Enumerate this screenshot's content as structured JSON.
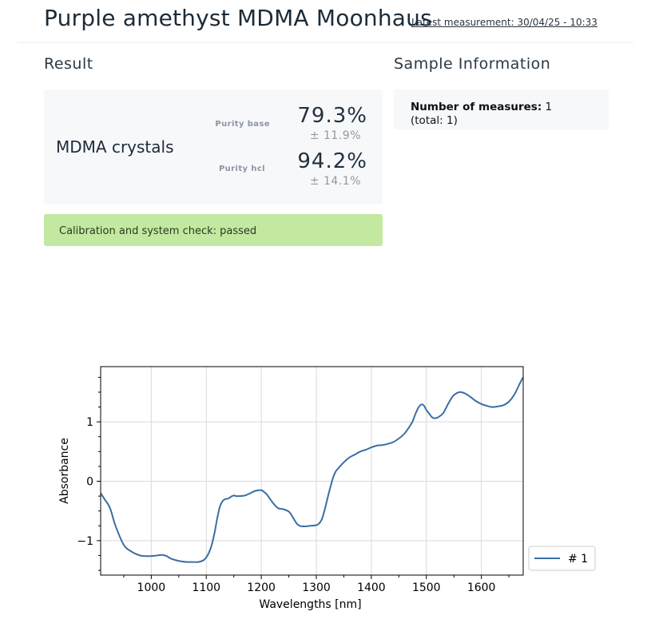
{
  "header": {
    "title": "Purple amethyst MDMA Moonhaus",
    "latest_measurement": "Latest measurement: 30/04/25 - 10:33"
  },
  "result": {
    "section_title": "Result",
    "product": "MDMA crystals",
    "metrics": [
      {
        "label": "Purity base",
        "value": "79.3%",
        "error": "± 11.9%"
      },
      {
        "label": "Purity hcl",
        "value": "94.2%",
        "error": "± 14.1%"
      }
    ],
    "status": "Calibration and system check: passed",
    "status_color": "#c3e8a0"
  },
  "sample": {
    "section_title": "Sample Information",
    "measures_label": "Number of measures:",
    "measures_value": "1",
    "total_text": "(total: 1)"
  },
  "chart_data": {
    "type": "line",
    "xlabel": "Wavelengths [nm]",
    "ylabel": "Absorbance",
    "xlim": [
      908,
      1676
    ],
    "ylim": [
      -1.58,
      1.93
    ],
    "xticks": [
      1000,
      1100,
      1200,
      1300,
      1400,
      1500,
      1600
    ],
    "xtick_labels": [
      "1000",
      "1100",
      "1200",
      "1300",
      "1400",
      "1500",
      "1600"
    ],
    "yticks": [
      -1,
      0,
      1
    ],
    "ytick_labels": [
      "−1",
      "0",
      "1"
    ],
    "grid": true,
    "legend_position": "outside-right",
    "series": [
      {
        "name": "# 1",
        "color": "#3a6ea5",
        "x": [
          908,
          915,
          925,
          935,
          950,
          965,
          980,
          990,
          1000,
          1010,
          1020,
          1028,
          1035,
          1045,
          1055,
          1065,
          1075,
          1085,
          1095,
          1100,
          1105,
          1110,
          1115,
          1120,
          1125,
          1130,
          1135,
          1140,
          1145,
          1150,
          1155,
          1160,
          1170,
          1180,
          1190,
          1200,
          1205,
          1210,
          1220,
          1230,
          1240,
          1250,
          1255,
          1260,
          1265,
          1270,
          1275,
          1280,
          1290,
          1300,
          1305,
          1310,
          1315,
          1320,
          1325,
          1330,
          1335,
          1340,
          1345,
          1350,
          1360,
          1370,
          1380,
          1390,
          1400,
          1410,
          1420,
          1430,
          1440,
          1450,
          1460,
          1470,
          1475,
          1480,
          1485,
          1490,
          1495,
          1500,
          1505,
          1510,
          1515,
          1520,
          1525,
          1530,
          1535,
          1540,
          1545,
          1550,
          1560,
          1570,
          1580,
          1590,
          1600,
          1610,
          1620,
          1630,
          1640,
          1650,
          1660,
          1670,
          1676
        ],
        "y": [
          -0.2,
          -0.3,
          -0.45,
          -0.75,
          -1.07,
          -1.19,
          -1.25,
          -1.26,
          -1.26,
          -1.25,
          -1.24,
          -1.26,
          -1.3,
          -1.33,
          -1.35,
          -1.36,
          -1.36,
          -1.36,
          -1.33,
          -1.28,
          -1.2,
          -1.07,
          -0.87,
          -0.62,
          -0.42,
          -0.33,
          -0.3,
          -0.29,
          -0.26,
          -0.24,
          -0.25,
          -0.25,
          -0.24,
          -0.2,
          -0.16,
          -0.15,
          -0.18,
          -0.22,
          -0.35,
          -0.45,
          -0.47,
          -0.51,
          -0.57,
          -0.65,
          -0.72,
          -0.75,
          -0.76,
          -0.76,
          -0.75,
          -0.74,
          -0.71,
          -0.64,
          -0.49,
          -0.3,
          -0.12,
          0.05,
          0.16,
          0.22,
          0.27,
          0.32,
          0.4,
          0.45,
          0.5,
          0.53,
          0.57,
          0.6,
          0.61,
          0.63,
          0.66,
          0.72,
          0.8,
          0.93,
          1.01,
          1.13,
          1.23,
          1.29,
          1.28,
          1.2,
          1.14,
          1.08,
          1.06,
          1.07,
          1.1,
          1.14,
          1.22,
          1.31,
          1.39,
          1.45,
          1.5,
          1.48,
          1.42,
          1.35,
          1.3,
          1.27,
          1.25,
          1.26,
          1.28,
          1.34,
          1.46,
          1.65,
          1.75
        ]
      }
    ]
  }
}
